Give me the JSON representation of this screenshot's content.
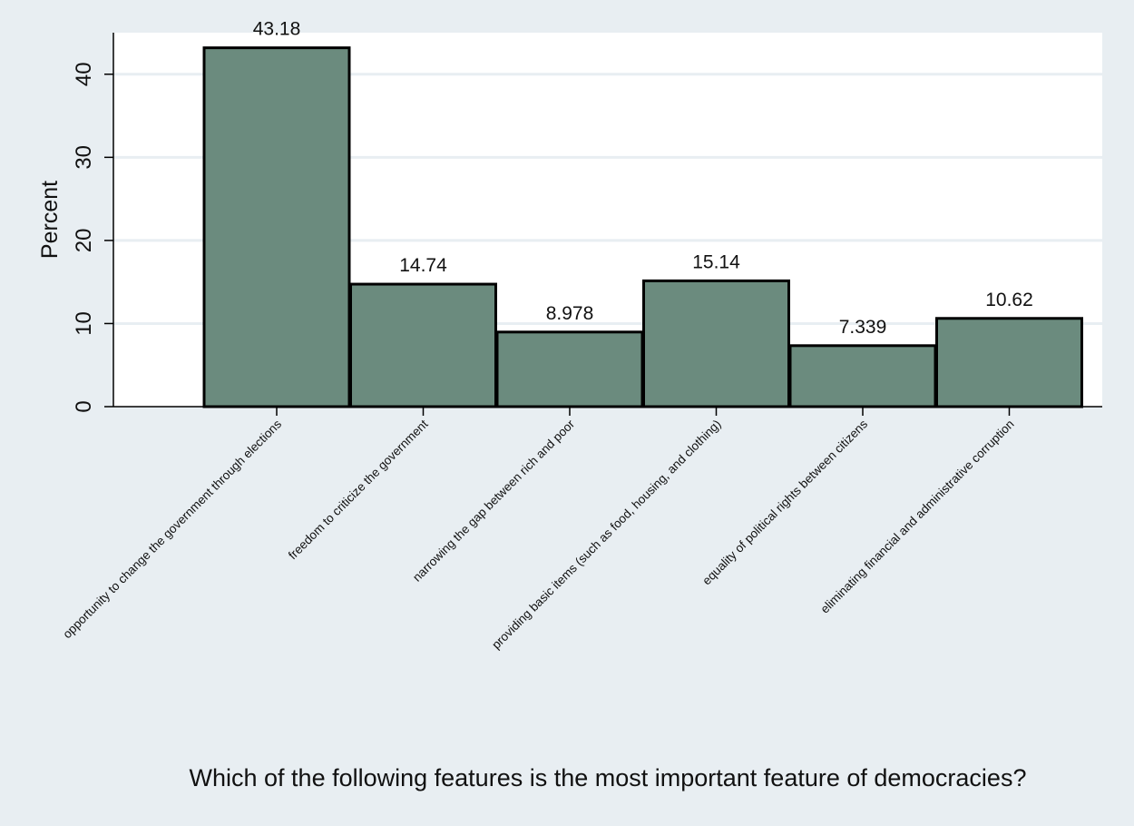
{
  "colors": {
    "background": "#e8eef2",
    "plot_background": "#ffffff",
    "grid": "#e8eef2",
    "bar_fill": "#6b8b7e",
    "bar_stroke": "#000000",
    "text": "#111111"
  },
  "chart_data": {
    "type": "bar",
    "title": "",
    "xlabel": "Which of the following features is the most important feature of democracies?",
    "ylabel": "Percent",
    "ylim": [
      0,
      45
    ],
    "yticks": [
      0,
      10,
      20,
      30,
      40
    ],
    "grid": true,
    "categories": [
      "opportunity to change the government through elections",
      "freedom to criticize the government",
      "narrowing the gap between rich and poor",
      "providing basic items (such as food, housing, and clothing)",
      "equality of political rights between citizens",
      "eliminating financial and administrative corruption"
    ],
    "values": [
      43.18,
      14.74,
      8.978,
      15.14,
      7.339,
      10.62
    ],
    "value_labels": [
      "43.18",
      "14.74",
      "8.978",
      "15.14",
      "7.339",
      "10.62"
    ]
  }
}
